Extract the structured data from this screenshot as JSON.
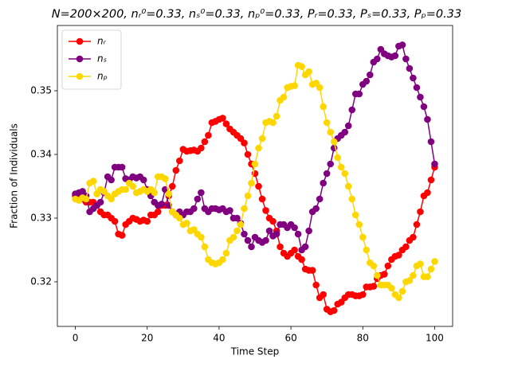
{
  "chart_data": {
    "type": "line",
    "title": "N=200×200, nᵣ⁰=0.33, nₛ⁰=0.33, nₚ⁰=0.33, Pᵣ=0.33, Pₛ=0.33, Pₚ=0.33",
    "xlabel": "Time Step",
    "ylabel": "Fraction of Individuals",
    "x": [
      0,
      1,
      2,
      3,
      4,
      5,
      6,
      7,
      8,
      9,
      10,
      11,
      12,
      13,
      14,
      15,
      16,
      17,
      18,
      19,
      20,
      21,
      22,
      23,
      24,
      25,
      26,
      27,
      28,
      29,
      30,
      31,
      32,
      33,
      34,
      35,
      36,
      37,
      38,
      39,
      40,
      41,
      42,
      43,
      44,
      45,
      46,
      47,
      48,
      49,
      50,
      51,
      52,
      53,
      54,
      55,
      56,
      57,
      58,
      59,
      60,
      61,
      62,
      63,
      64,
      65,
      66,
      67,
      68,
      69,
      70,
      71,
      72,
      73,
      74,
      75,
      76,
      77,
      78,
      79,
      80,
      81,
      82,
      83,
      84,
      85,
      86,
      87,
      88,
      89,
      90,
      91,
      92,
      93,
      94,
      95,
      96,
      97,
      98,
      99,
      100
    ],
    "series": [
      {
        "name": "nᵣ",
        "color": "#ff0000",
        "values": [
          0.3335,
          0.3335,
          0.333,
          0.3325,
          0.3325,
          0.3325,
          0.332,
          0.331,
          0.3305,
          0.3305,
          0.33,
          0.3295,
          0.3275,
          0.3273,
          0.329,
          0.3295,
          0.33,
          0.3298,
          0.3295,
          0.3297,
          0.3295,
          0.3305,
          0.3305,
          0.331,
          0.332,
          0.332,
          0.3335,
          0.335,
          0.3375,
          0.339,
          0.3408,
          0.3405,
          0.3406,
          0.3407,
          0.3405,
          0.341,
          0.342,
          0.343,
          0.345,
          0.3452,
          0.3455,
          0.3457,
          0.3448,
          0.344,
          0.3435,
          0.343,
          0.3425,
          0.3418,
          0.34,
          0.3385,
          0.337,
          0.335,
          0.333,
          0.3312,
          0.33,
          0.3295,
          0.328,
          0.3255,
          0.3245,
          0.324,
          0.3245,
          0.325,
          0.324,
          0.3235,
          0.322,
          0.3218,
          0.3218,
          0.3195,
          0.3175,
          0.318,
          0.3157,
          0.3153,
          0.3155,
          0.3165,
          0.3168,
          0.3175,
          0.318,
          0.318,
          0.3178,
          0.3178,
          0.318,
          0.3192,
          0.3192,
          0.3193,
          0.3205,
          0.321,
          0.3212,
          0.3225,
          0.3235,
          0.324,
          0.3242,
          0.325,
          0.3255,
          0.3265,
          0.327,
          0.329,
          0.331,
          0.3335,
          0.334,
          0.336,
          0.338
        ]
      },
      {
        "name": "nₛ",
        "color": "#800080",
        "values": [
          0.3338,
          0.334,
          0.3342,
          0.3335,
          0.331,
          0.3315,
          0.332,
          0.3325,
          0.334,
          0.3365,
          0.336,
          0.338,
          0.338,
          0.338,
          0.3362,
          0.336,
          0.3365,
          0.3363,
          0.3365,
          0.336,
          0.3345,
          0.3335,
          0.3325,
          0.332,
          0.3322,
          0.3345,
          0.332,
          0.331,
          0.3305,
          0.331,
          0.3305,
          0.331,
          0.331,
          0.3315,
          0.333,
          0.334,
          0.3315,
          0.331,
          0.3315,
          0.3315,
          0.3313,
          0.3315,
          0.331,
          0.3312,
          0.33,
          0.33,
          0.3292,
          0.3275,
          0.3265,
          0.3255,
          0.327,
          0.3265,
          0.3262,
          0.3265,
          0.328,
          0.3272,
          0.3275,
          0.329,
          0.329,
          0.3285,
          0.329,
          0.3285,
          0.3275,
          0.325,
          0.3255,
          0.328,
          0.331,
          0.3315,
          0.333,
          0.3355,
          0.337,
          0.3385,
          0.341,
          0.3425,
          0.343,
          0.3435,
          0.3445,
          0.347,
          0.3495,
          0.3495,
          0.351,
          0.3515,
          0.3525,
          0.3545,
          0.355,
          0.3565,
          0.3558,
          0.3555,
          0.3553,
          0.3555,
          0.357,
          0.3572,
          0.355,
          0.3535,
          0.352,
          0.3505,
          0.349,
          0.3475,
          0.3455,
          0.342,
          0.3385
        ]
      },
      {
        "name": "nₚ",
        "color": "#ffd700",
        "values": [
          0.333,
          0.3328,
          0.3332,
          0.333,
          0.3355,
          0.3358,
          0.3338,
          0.3345,
          0.3342,
          0.3335,
          0.333,
          0.3338,
          0.3342,
          0.3345,
          0.3345,
          0.3355,
          0.335,
          0.334,
          0.3342,
          0.3345,
          0.3342,
          0.3345,
          0.334,
          0.3365,
          0.3365,
          0.3362,
          0.3338,
          0.331,
          0.3305,
          0.33,
          0.329,
          0.3292,
          0.328,
          0.3282,
          0.3275,
          0.327,
          0.3255,
          0.3235,
          0.323,
          0.3228,
          0.323,
          0.3235,
          0.3245,
          0.3265,
          0.327,
          0.328,
          0.329,
          0.3315,
          0.3335,
          0.3355,
          0.3385,
          0.341,
          0.3425,
          0.345,
          0.3452,
          0.345,
          0.346,
          0.3485,
          0.349,
          0.3505,
          0.3507,
          0.3508,
          0.354,
          0.3538,
          0.3525,
          0.353,
          0.351,
          0.3512,
          0.3505,
          0.3475,
          0.345,
          0.3435,
          0.342,
          0.3395,
          0.338,
          0.337,
          0.335,
          0.333,
          0.3305,
          0.329,
          0.327,
          0.325,
          0.323,
          0.3225,
          0.321,
          0.3195,
          0.3195,
          0.3195,
          0.319,
          0.318,
          0.3175,
          0.3185,
          0.32,
          0.3202,
          0.321,
          0.3225,
          0.3228,
          0.3208,
          0.3208,
          0.322,
          0.3232
        ]
      }
    ],
    "xlim": [
      -5,
      105
    ],
    "ylim": [
      0.313,
      0.36025
    ],
    "xticks": [
      0,
      20,
      40,
      60,
      80,
      100
    ],
    "yticks": [
      0.32,
      0.33,
      0.34,
      0.35
    ],
    "legend": "upper left"
  }
}
